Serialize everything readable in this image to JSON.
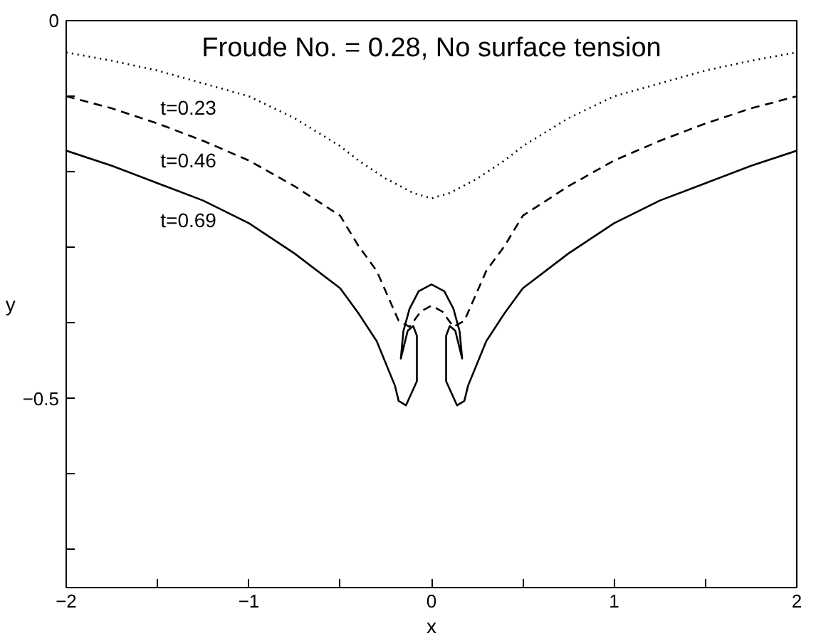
{
  "chart_data": {
    "type": "line",
    "title": "Froude No. = 0.28, No surface tension",
    "xlabel": "x",
    "ylabel": "y",
    "xlim": [
      -2,
      2
    ],
    "ylim": [
      -0.75,
      0
    ],
    "xticks": [
      -2,
      {
        "value": -1.5,
        "label": null
      },
      -1,
      {
        "value": -0.5,
        "label": null
      },
      0,
      {
        "value": 0.5,
        "label": null
      },
      1,
      {
        "value": 1.5,
        "label": null
      },
      2
    ],
    "yticks": [
      {
        "value": -0.7,
        "label": null
      },
      {
        "value": -0.6,
        "label": null
      },
      -0.5,
      {
        "value": -0.4,
        "label": null
      },
      {
        "value": -0.3,
        "label": null
      },
      {
        "value": -0.2,
        "label": null
      },
      {
        "value": -0.1,
        "label": null
      },
      0
    ],
    "grid": false,
    "legend": false,
    "series": [
      {
        "name": "t=0.23",
        "color": "#000000",
        "line_style": "dotted",
        "x": [
          -2,
          -1.75,
          -1.5,
          -1.25,
          -1,
          -0.75,
          -0.5,
          -0.4,
          -0.25,
          -0.1,
          0,
          0.1,
          0.25,
          0.4,
          0.5,
          0.75,
          1,
          1.25,
          1.5,
          1.75,
          2
        ],
        "values": [
          -0.042,
          -0.053,
          -0.066,
          -0.083,
          -0.1,
          -0.129,
          -0.166,
          -0.185,
          -0.209,
          -0.228,
          -0.235,
          -0.228,
          -0.209,
          -0.185,
          -0.166,
          -0.129,
          -0.1,
          -0.083,
          -0.066,
          -0.053,
          -0.042
        ]
      },
      {
        "name": "t=0.46",
        "color": "#000000",
        "line_style": "dashed",
        "x": [
          -2,
          -1.75,
          -1.5,
          -1.25,
          -1,
          -0.75,
          -0.5,
          -0.4,
          -0.3,
          -0.18,
          -0.12,
          -0.06,
          0,
          0.06,
          0.12,
          0.18,
          0.3,
          0.4,
          0.5,
          0.75,
          1,
          1.25,
          1.5,
          1.75,
          2
        ],
        "values": [
          -0.1,
          -0.116,
          -0.136,
          -0.159,
          -0.185,
          -0.219,
          -0.258,
          -0.298,
          -0.331,
          -0.397,
          -0.405,
          -0.385,
          -0.377,
          -0.385,
          -0.405,
          -0.397,
          -0.331,
          -0.298,
          -0.258,
          -0.219,
          -0.185,
          -0.159,
          -0.136,
          -0.116,
          -0.1
        ]
      },
      {
        "name": "t=0.69",
        "color": "#000000",
        "line_style": "solid",
        "x": [
          -2,
          -1.75,
          -1.5,
          -1.25,
          -1,
          -0.75,
          -0.5,
          -0.4,
          -0.3,
          -0.2,
          -0.18,
          -0.14,
          -0.08,
          -0.08,
          -0.1,
          -0.13,
          -0.168,
          -0.154,
          -0.12,
          -0.07,
          0,
          0.07,
          0.12,
          0.154,
          0.168,
          0.13,
          0.1,
          0.08,
          0.08,
          0.14,
          0.18,
          0.2,
          0.3,
          0.4,
          0.5,
          0.75,
          1,
          1.25,
          1.5,
          1.75,
          2
        ],
        "values": [
          -0.172,
          -0.192,
          -0.215,
          -0.238,
          -0.268,
          -0.308,
          -0.354,
          -0.387,
          -0.424,
          -0.483,
          -0.503,
          -0.509,
          -0.477,
          -0.417,
          -0.404,
          -0.41,
          -0.447,
          -0.411,
          -0.381,
          -0.358,
          -0.349,
          -0.358,
          -0.381,
          -0.411,
          -0.447,
          -0.41,
          -0.404,
          -0.417,
          -0.477,
          -0.509,
          -0.503,
          -0.483,
          -0.424,
          -0.387,
          -0.354,
          -0.308,
          -0.268,
          -0.238,
          -0.215,
          -0.192,
          -0.172
        ]
      }
    ]
  }
}
